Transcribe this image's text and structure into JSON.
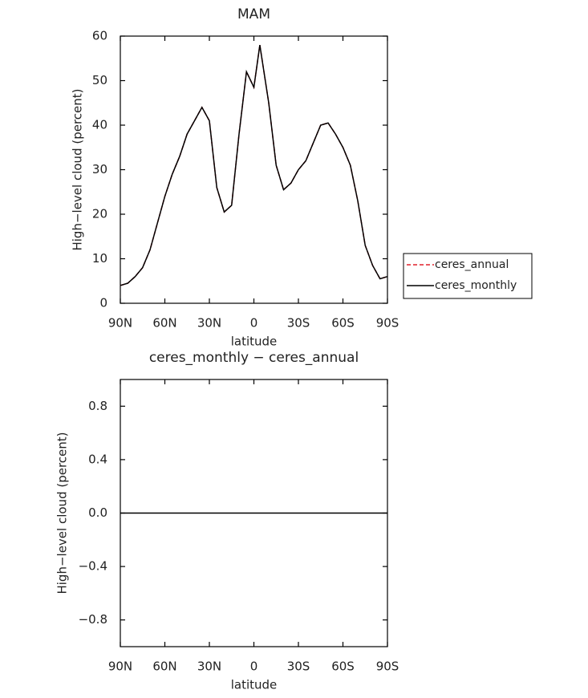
{
  "chart_data": [
    {
      "type": "line",
      "title": "MAM",
      "xlabel": "latitude",
      "ylabel": "High−level cloud (percent)",
      "x": [
        90,
        85,
        80,
        75,
        70,
        65,
        60,
        55,
        50,
        45,
        40,
        35,
        30,
        25,
        20,
        15,
        10,
        5,
        0,
        -4,
        -10,
        -15,
        -20,
        -25,
        -30,
        -35,
        -40,
        -45,
        -50,
        -55,
        -60,
        -65,
        -70,
        -75,
        -80,
        -85,
        -90
      ],
      "series": [
        {
          "name": "ceres_annual",
          "color": "#e0202a",
          "dash": true,
          "values": [
            4,
            4.5,
            6,
            8,
            12,
            18,
            24,
            29,
            33,
            38,
            41,
            44,
            41,
            26,
            20.5,
            22,
            38,
            52,
            48.5,
            58,
            45,
            31,
            25.5,
            27,
            30,
            32,
            36,
            40,
            40.5,
            38,
            35,
            31,
            23,
            13,
            8.5,
            5.5,
            6
          ]
        },
        {
          "name": "ceres_monthly",
          "color": "#000000",
          "dash": false,
          "values": [
            4,
            4.5,
            6,
            8,
            12,
            18,
            24,
            29,
            33,
            38,
            41,
            44,
            41,
            26,
            20.5,
            22,
            38,
            52,
            48.5,
            58,
            45,
            31,
            25.5,
            27,
            30,
            32,
            36,
            40,
            40.5,
            38,
            35,
            31,
            23,
            13,
            8.5,
            5.5,
            6
          ]
        }
      ],
      "xlim": [
        90,
        -90
      ],
      "xticks": [
        {
          "value": 90,
          "label": "90N"
        },
        {
          "value": 60,
          "label": "60N"
        },
        {
          "value": 30,
          "label": "30N"
        },
        0,
        {
          "value": -30,
          "label": "30S"
        },
        {
          "value": -60,
          "label": "60S"
        },
        {
          "value": -90,
          "label": "90S"
        }
      ],
      "ylim": [
        0,
        60
      ],
      "yticks": [
        0,
        10,
        20,
        30,
        40,
        50,
        60
      ],
      "legend": "right"
    },
    {
      "type": "line",
      "title": "ceres_monthly − ceres_annual",
      "xlabel": "latitude",
      "ylabel": "High−level cloud (percent)",
      "x": [
        90,
        -90
      ],
      "series": [
        {
          "color": "#000000",
          "dash": false,
          "values": [
            0,
            0
          ]
        }
      ],
      "xlim": [
        90,
        -90
      ],
      "xticks": [
        {
          "value": 90,
          "label": "90N"
        },
        {
          "value": 60,
          "label": "60N"
        },
        {
          "value": 30,
          "label": "30N"
        },
        0,
        {
          "value": -30,
          "label": "30S"
        },
        {
          "value": -60,
          "label": "60S"
        },
        {
          "value": -90,
          "label": "90S"
        }
      ],
      "ylim": [
        -1,
        1
      ],
      "yticks": [
        {
          "value": -0.8,
          "label": "−0.8"
        },
        {
          "value": -0.4,
          "label": "−0.4"
        },
        {
          "value": 0,
          "label": "0.0"
        },
        0.4,
        0.8
      ]
    }
  ]
}
